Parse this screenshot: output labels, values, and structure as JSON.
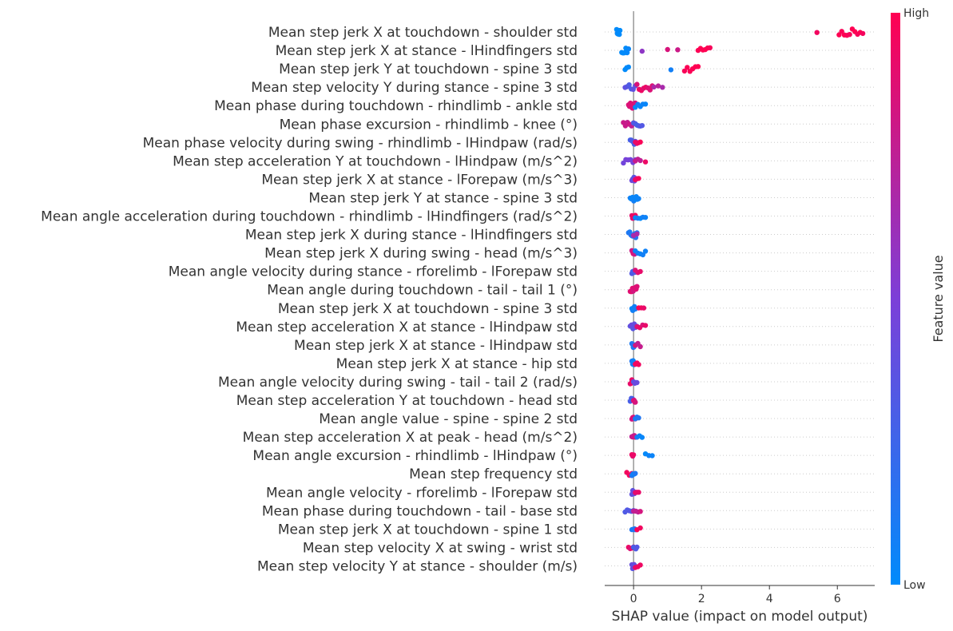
{
  "chart_data": {
    "type": "scatter",
    "subtype": "shap-beeswarm-summary",
    "xlabel": "SHAP value (impact on model output)",
    "xlim": [
      -0.85,
      7.1
    ],
    "xticks": [
      0,
      2,
      4,
      6
    ],
    "xtick_labels": [
      "0",
      "2",
      "4",
      "6"
    ],
    "colorbar": {
      "title": "Feature value",
      "high_label": "High",
      "low_label": "Low",
      "low_color": "#008bfb",
      "high_color": "#ff0052"
    },
    "zero_line_color": "#999999",
    "row_line_color": "#cccccc",
    "grid": false,
    "legend": "colorbar-right",
    "features": [
      {
        "label": "Mean step jerk X at touchdown - shoulder std",
        "clusters": [
          [
            -0.5,
            -0.4,
            6,
            0.0
          ],
          [
            5.4,
            5.4,
            1,
            1.0
          ],
          [
            6.05,
            6.75,
            10,
            1.0
          ]
        ]
      },
      {
        "label": "Mean step jerk X at stance - lHindfingers std",
        "clusters": [
          [
            -0.35,
            -0.15,
            6,
            0.0
          ],
          [
            0.25,
            0.25,
            1,
            0.55
          ],
          [
            1.0,
            1.3,
            2,
            0.8
          ],
          [
            1.9,
            2.25,
            6,
            1.0
          ]
        ]
      },
      {
        "label": "Mean step jerk Y at touchdown - spine 3 std",
        "clusters": [
          [
            -0.25,
            -0.15,
            3,
            0.0
          ],
          [
            1.1,
            1.1,
            1,
            0.1
          ],
          [
            1.5,
            1.9,
            6,
            1.0
          ]
        ]
      },
      {
        "label": "Mean step velocity Y during stance - spine 3 std",
        "clusters": [
          [
            -0.25,
            0.05,
            6,
            0.35
          ],
          [
            0.1,
            0.55,
            8,
            0.9
          ],
          [
            0.6,
            0.85,
            3,
            0.7
          ]
        ]
      },
      {
        "label": "Mean phase during touchdown - rhindlimb - ankle std",
        "clusters": [
          [
            -0.15,
            0.05,
            8,
            0.85
          ],
          [
            0.05,
            0.35,
            5,
            0.05
          ]
        ]
      },
      {
        "label": "Mean phase excursion - rhindlimb - knee (°)",
        "clusters": [
          [
            -0.3,
            0.0,
            6,
            0.8
          ],
          [
            0.0,
            0.25,
            6,
            0.3
          ]
        ]
      },
      {
        "label": "Mean phase velocity during swing - rhindlimb - lHindpaw (rad/s)",
        "clusters": [
          [
            -0.1,
            0.05,
            6,
            0.3
          ],
          [
            0.05,
            0.2,
            4,
            0.95
          ]
        ]
      },
      {
        "label": "Mean step acceleration Y at touchdown - lHindpaw (m/s^2)",
        "clusters": [
          [
            -0.3,
            0.05,
            6,
            0.5
          ],
          [
            0.05,
            0.2,
            3,
            0.75
          ],
          [
            0.35,
            0.35,
            1,
            0.95
          ]
        ]
      },
      {
        "label": "Mean step jerk X at stance - lForepaw (m/s^3)",
        "clusters": [
          [
            -0.05,
            0.05,
            6,
            0.4
          ],
          [
            0.05,
            0.15,
            3,
            0.95
          ]
        ]
      },
      {
        "label": "Mean step jerk Y at stance - spine 3 std",
        "clusters": [
          [
            -0.1,
            0.15,
            8,
            0.05
          ]
        ]
      },
      {
        "label": "Mean angle acceleration during touchdown - rhindlimb - lHindfingers (rad/s^2)",
        "clusters": [
          [
            -0.05,
            0.05,
            6,
            0.9
          ],
          [
            0.05,
            0.35,
            5,
            0.05
          ]
        ]
      },
      {
        "label": "Mean step jerk X during stance - lHindfingers std",
        "clusters": [
          [
            -0.15,
            0.1,
            8,
            0.15
          ],
          [
            0.0,
            0.1,
            2,
            0.7
          ]
        ]
      },
      {
        "label": "Mean step jerk X during swing - head (m/s^3)",
        "clusters": [
          [
            -0.05,
            0.05,
            6,
            0.85
          ],
          [
            0.05,
            0.35,
            5,
            0.05
          ]
        ]
      },
      {
        "label": "Mean angle velocity during stance - rforelimb - lForepaw std",
        "clusters": [
          [
            -0.05,
            0.05,
            6,
            0.3
          ],
          [
            0.05,
            0.2,
            3,
            0.9
          ]
        ]
      },
      {
        "label": "Mean angle during touchdown - tail - tail 1 (°)",
        "clusters": [
          [
            -0.1,
            0.1,
            10,
            0.85
          ]
        ]
      },
      {
        "label": "Mean step jerk X at touchdown - spine 3 std",
        "clusters": [
          [
            -0.05,
            0.05,
            5,
            0.05
          ],
          [
            0.15,
            0.3,
            3,
            0.95
          ]
        ]
      },
      {
        "label": "Mean step acceleration X at stance - lHindpaw std",
        "clusters": [
          [
            -0.1,
            0.1,
            6,
            0.4
          ],
          [
            0.1,
            0.35,
            4,
            0.9
          ]
        ]
      },
      {
        "label": "Mean step jerk X at stance - lHindpaw std",
        "clusters": [
          [
            -0.05,
            0.05,
            6,
            0.15
          ],
          [
            0.05,
            0.2,
            3,
            0.8
          ]
        ]
      },
      {
        "label": "Mean step jerk X at stance - hip std",
        "clusters": [
          [
            -0.05,
            0.05,
            6,
            0.1
          ],
          [
            0.05,
            0.15,
            3,
            0.95
          ]
        ]
      },
      {
        "label": "Mean angle velocity during swing - tail - tail 2 (rad/s)",
        "clusters": [
          [
            -0.1,
            0.0,
            5,
            0.9
          ],
          [
            0.0,
            0.1,
            4,
            0.4
          ]
        ]
      },
      {
        "label": "Mean step acceleration Y at touchdown - head std",
        "clusters": [
          [
            -0.1,
            0.0,
            4,
            0.3
          ],
          [
            0.0,
            0.05,
            4,
            0.85
          ]
        ]
      },
      {
        "label": "Mean angle value - spine - spine 2 std",
        "clusters": [
          [
            -0.05,
            0.05,
            5,
            0.85
          ],
          [
            0.05,
            0.15,
            3,
            0.1
          ]
        ]
      },
      {
        "label": "Mean step acceleration X at peak - head (m/s^2)",
        "clusters": [
          [
            -0.05,
            0.05,
            5,
            0.8
          ],
          [
            0.1,
            0.25,
            3,
            0.05
          ]
        ]
      },
      {
        "label": "Mean angle excursion - rhindlimb - lHindpaw (°)",
        "clusters": [
          [
            -0.05,
            0.0,
            3,
            0.9
          ],
          [
            0.35,
            0.55,
            3,
            0.05
          ]
        ]
      },
      {
        "label": "Mean step frequency std",
        "clusters": [
          [
            -0.2,
            -0.05,
            3,
            0.95
          ],
          [
            -0.05,
            0.05,
            4,
            0.1
          ]
        ]
      },
      {
        "label": "Mean angle velocity - rforelimb - lForepaw std",
        "clusters": [
          [
            -0.05,
            0.05,
            5,
            0.4
          ],
          [
            0.05,
            0.15,
            3,
            0.9
          ]
        ]
      },
      {
        "label": "Mean phase during touchdown - tail - base std",
        "clusters": [
          [
            -0.25,
            0.0,
            5,
            0.35
          ],
          [
            0.0,
            0.2,
            4,
            0.8
          ]
        ]
      },
      {
        "label": "Mean step jerk X at touchdown - spine 1 std",
        "clusters": [
          [
            -0.05,
            0.05,
            6,
            0.1
          ],
          [
            0.1,
            0.2,
            2,
            0.95
          ]
        ]
      },
      {
        "label": "Mean step velocity X at swing - wrist std",
        "clusters": [
          [
            -0.15,
            0.0,
            4,
            0.9
          ],
          [
            0.0,
            0.1,
            4,
            0.3
          ]
        ]
      },
      {
        "label": "Mean step velocity Y at stance - shoulder (m/s)",
        "clusters": [
          [
            -0.05,
            0.05,
            6,
            0.4
          ],
          [
            0.05,
            0.2,
            3,
            0.95
          ]
        ]
      }
    ]
  }
}
